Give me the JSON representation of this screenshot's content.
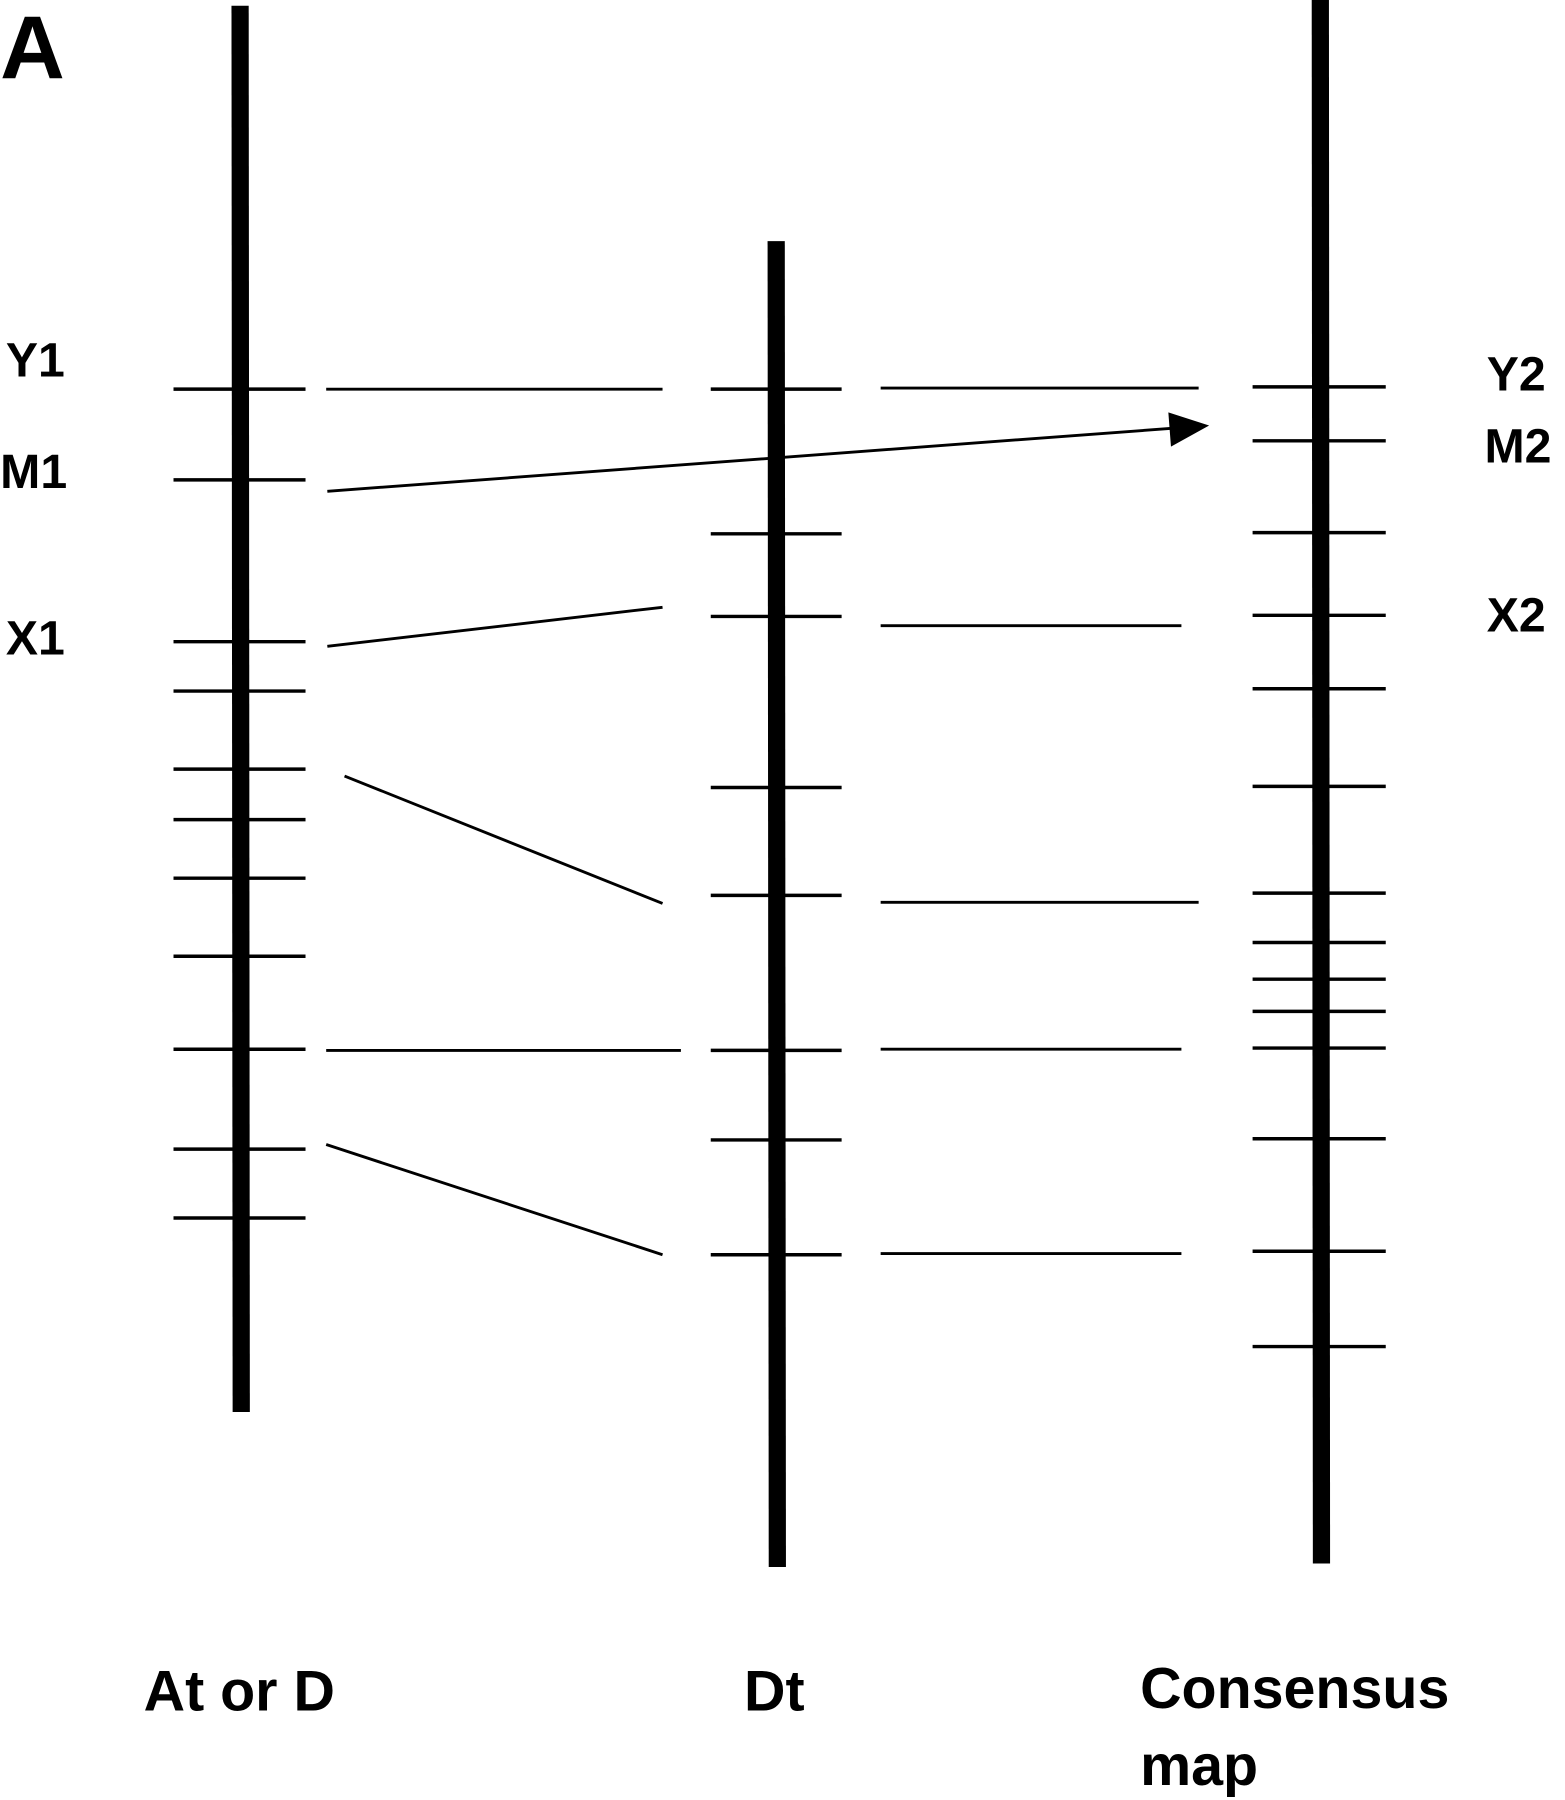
{
  "panel_label": "A",
  "maps": [
    {
      "label": "At or D",
      "label_lines": [
        "At or D"
      ]
    },
    {
      "label": "Dt",
      "label_lines": [
        "Dt"
      ]
    },
    {
      "label": "Consensus map",
      "label_lines": [
        "Consensus",
        "map"
      ]
    }
  ],
  "marker_labels": {
    "left": [
      "Y1",
      "M1",
      "X1"
    ],
    "right": [
      "Y2",
      "M2",
      "X2"
    ]
  },
  "colors": {
    "line": "#000000",
    "background": "#ffffff"
  }
}
